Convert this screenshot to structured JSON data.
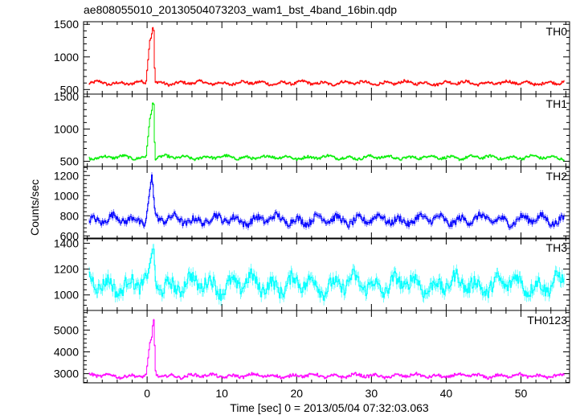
{
  "chart_data": {
    "type": "line",
    "title": "ae808055010_20130504073203_wam1_bst_4band_16bin.qdp",
    "xlabel": "Time [sec] 0 = 2013/05/04 07:32:03.063",
    "ylabel": "Counts/sec",
    "xlim": [
      -8.5,
      56.5
    ],
    "xticks": [
      0,
      10,
      20,
      30,
      40,
      50
    ],
    "grid": false,
    "panels": [
      {
        "name": "TH0",
        "color": "#ff0000",
        "ylim": [
          430,
          1540
        ],
        "yticks": [
          500,
          1000,
          1500
        ],
        "base": 600,
        "noise": 35,
        "burst": [
          [
            -0.2,
            600
          ],
          [
            0.3,
            1250
          ],
          [
            0.5,
            1300
          ],
          [
            0.8,
            1520
          ],
          [
            1.0,
            600
          ]
        ]
      },
      {
        "name": "TH1",
        "color": "#00ee00",
        "ylim": [
          420,
          1540
        ],
        "yticks": [
          500,
          1000,
          1500
        ],
        "base": 560,
        "noise": 35,
        "burst": [
          [
            -0.2,
            560
          ],
          [
            0.3,
            1150
          ],
          [
            0.6,
            1300
          ],
          [
            0.8,
            1500
          ],
          [
            1.0,
            560
          ]
        ]
      },
      {
        "name": "TH2",
        "color": "#0000ff",
        "ylim": [
          570,
          1290
        ],
        "yticks": [
          600,
          800,
          1000,
          1200
        ],
        "base": 760,
        "noise": 60,
        "burst": [
          [
            -0.2,
            760
          ],
          [
            0.3,
            1050
          ],
          [
            0.6,
            1220
          ],
          [
            0.9,
            900
          ],
          [
            1.2,
            760
          ]
        ]
      },
      {
        "name": "TH3",
        "color": "#00ffff",
        "ylim": [
          880,
          1440
        ],
        "yticks": [
          1000,
          1200,
          1400
        ],
        "base": 1080,
        "noise": 90,
        "burst": [
          [
            -0.2,
            1080
          ],
          [
            0.5,
            1300
          ],
          [
            0.8,
            1380
          ],
          [
            1.1,
            1080
          ]
        ]
      },
      {
        "name": "TH0123",
        "color": "#ff00ff",
        "ylim": [
          2580,
          5900
        ],
        "yticks": [
          3000,
          4000,
          5000
        ],
        "base": 2900,
        "noise": 110,
        "burst": [
          [
            -0.2,
            2900
          ],
          [
            0.3,
            4400
          ],
          [
            0.6,
            4700
          ],
          [
            0.8,
            5700
          ],
          [
            1.1,
            2900
          ]
        ]
      }
    ]
  }
}
